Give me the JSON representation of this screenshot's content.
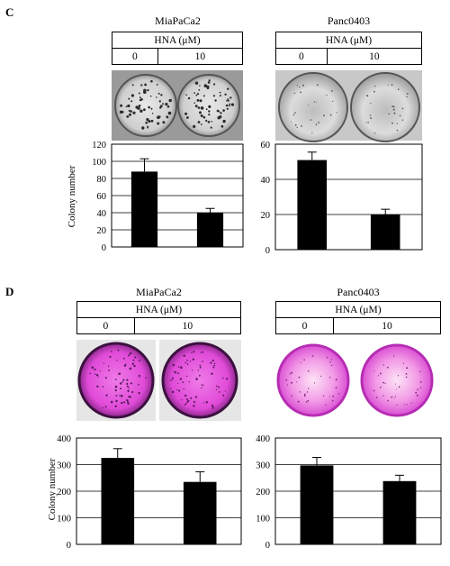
{
  "panels": [
    {
      "letter": "C",
      "cells": [
        {
          "title": "MiaPaCa2",
          "table": {
            "header": "HNA (μM)",
            "col1": "0",
            "col2": "10"
          },
          "plate_style": "gray",
          "chart": {
            "ylabel": "Colony number",
            "yticks": [
              "0",
              "20",
              "40",
              "60",
              "80",
              "100",
              "120"
            ]
          }
        },
        {
          "title": "Panc0403",
          "table": {
            "header": "HNA (μM)",
            "col1": "0",
            "col2": "10"
          },
          "plate_style": "gray",
          "chart": {
            "ylabel": "",
            "yticks": [
              "0",
              "20",
              "40",
              "60"
            ]
          }
        }
      ]
    },
    {
      "letter": "D",
      "cells": [
        {
          "title": "MiaPaCa2",
          "table": {
            "header": "HNA (μM)",
            "col1": "0",
            "col2": "10"
          },
          "plate_style": "purple",
          "chart": {
            "ylabel": "Colony number",
            "yticks": [
              "0",
              "100",
              "200",
              "300",
              "400"
            ]
          }
        },
        {
          "title": "Panc0403",
          "table": {
            "header": "HNA (μM)",
            "col1": "0",
            "col2": "10"
          },
          "plate_style": "purple",
          "chart": {
            "ylabel": "",
            "yticks": [
              "0",
              "100",
              "200",
              "300",
              "400"
            ]
          }
        }
      ]
    }
  ],
  "chart_data": [
    {
      "type": "bar",
      "panel": "C",
      "title": "MiaPaCa2",
      "ylabel": "Colony number",
      "categories": [
        "0",
        "10"
      ],
      "values": [
        88,
        40
      ],
      "errors": [
        15,
        5
      ],
      "ylim": [
        0,
        120
      ],
      "grid": true
    },
    {
      "type": "bar",
      "panel": "C",
      "title": "Panc0403",
      "ylabel": "",
      "categories": [
        "0",
        "10"
      ],
      "values": [
        51,
        20
      ],
      "errors": [
        4.5,
        3
      ],
      "ylim": [
        0,
        60
      ],
      "grid": true
    },
    {
      "type": "bar",
      "panel": "D",
      "title": "MiaPaCa2",
      "ylabel": "Colony number",
      "categories": [
        "0",
        "10"
      ],
      "values": [
        325,
        235
      ],
      "errors": [
        35,
        38
      ],
      "ylim": [
        0,
        400
      ],
      "grid": true
    },
    {
      "type": "bar",
      "panel": "D",
      "title": "Panc0403",
      "ylabel": "",
      "categories": [
        "0",
        "10"
      ],
      "values": [
        297,
        238
      ],
      "errors": [
        30,
        22
      ],
      "ylim": [
        0,
        400
      ],
      "grid": true
    }
  ],
  "colors": {
    "bar": "#000000",
    "grid": "#000000",
    "plate_purple": "#e04ad8",
    "plate_gray": "#b8b8b8"
  }
}
